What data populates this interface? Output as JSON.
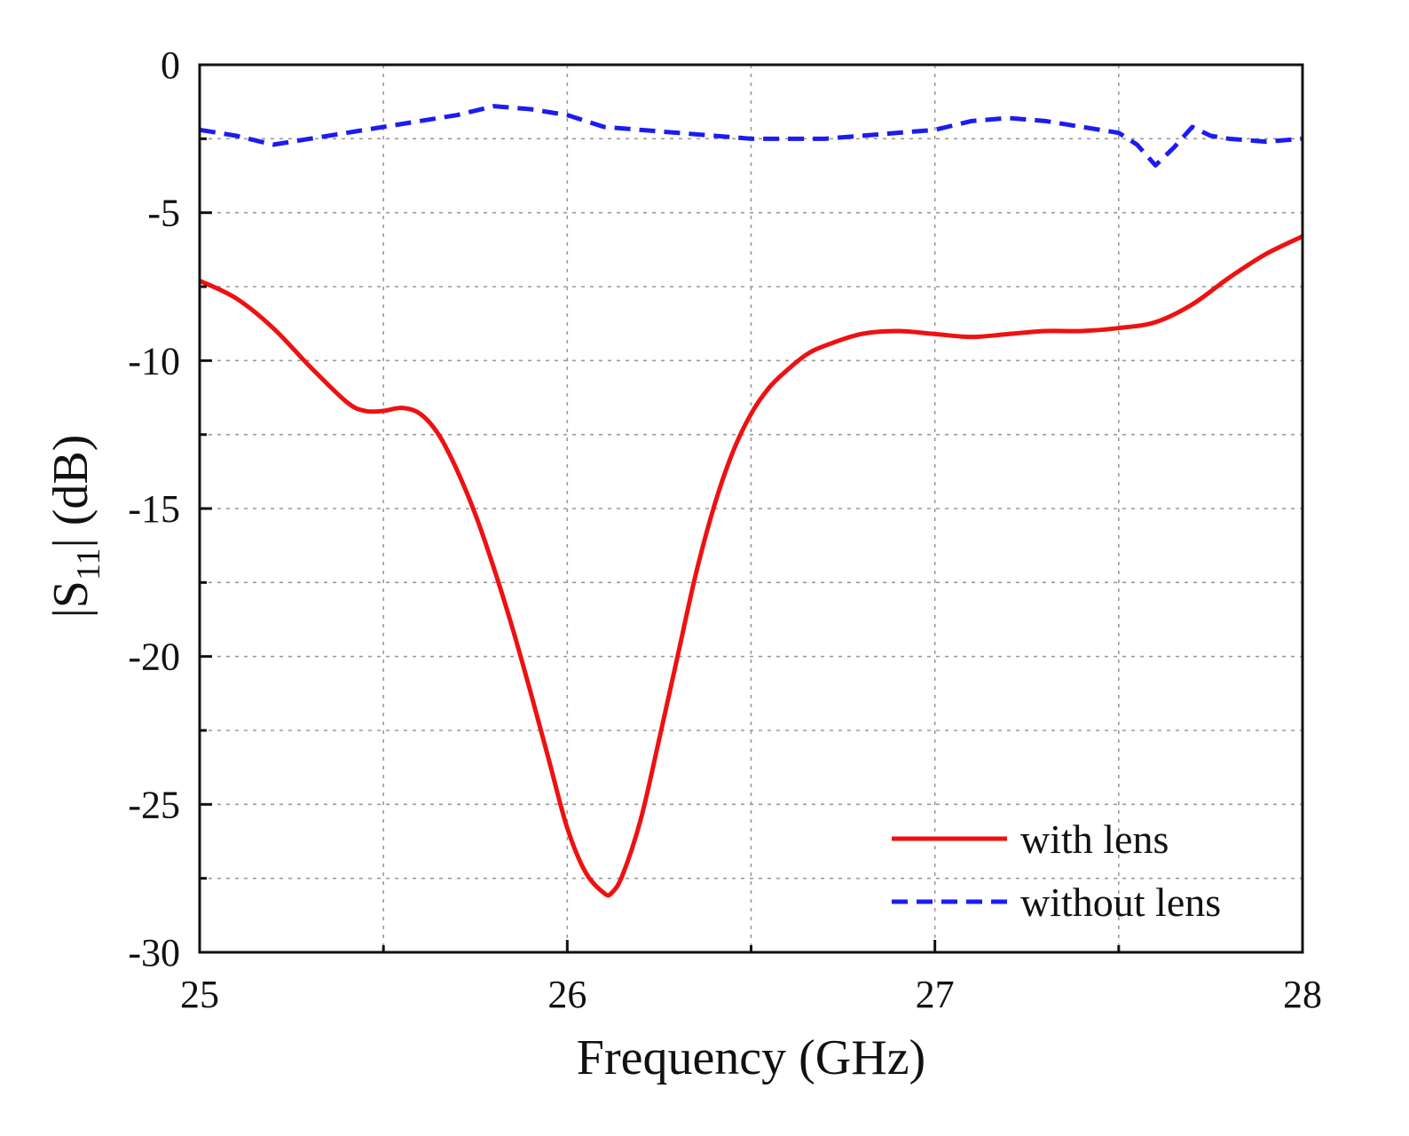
{
  "chart_data": {
    "type": "line",
    "xlabel": "Frequency (GHz)",
    "ylabel_main": "|S",
    "ylabel_sub": "11",
    "ylabel_rest": "| (dB)",
    "xlim": [
      25,
      28
    ],
    "ylim": [
      -30,
      0
    ],
    "xticks": [
      25,
      26,
      27,
      28
    ],
    "xtick_labels": [
      "25",
      "26",
      "27",
      "28"
    ],
    "yticks": [
      0,
      -5,
      -10,
      -15,
      -20,
      -25,
      -30
    ],
    "ytick_labels": [
      "0",
      "-5",
      "-10",
      "-15",
      "-20",
      "-25",
      "-30"
    ],
    "grid": true,
    "legend_position": "bottom-right",
    "series": [
      {
        "name": "with lens",
        "color": "#ee1111",
        "style": "solid",
        "x": [
          25.0,
          25.1,
          25.2,
          25.3,
          25.4,
          25.45,
          25.5,
          25.55,
          25.6,
          25.65,
          25.7,
          25.75,
          25.8,
          25.85,
          25.9,
          25.95,
          26.0,
          26.05,
          26.1,
          26.12,
          26.15,
          26.2,
          26.25,
          26.3,
          26.35,
          26.4,
          26.45,
          26.5,
          26.55,
          26.6,
          26.65,
          26.7,
          26.8,
          26.9,
          27.0,
          27.1,
          27.2,
          27.3,
          27.4,
          27.5,
          27.6,
          27.7,
          27.8,
          27.9,
          28.0
        ],
        "values": [
          -7.3,
          -7.9,
          -8.9,
          -10.2,
          -11.4,
          -11.7,
          -11.7,
          -11.6,
          -11.8,
          -12.5,
          -13.7,
          -15.2,
          -17.0,
          -19.0,
          -21.2,
          -23.5,
          -25.8,
          -27.3,
          -28.0,
          -28.0,
          -27.4,
          -25.5,
          -22.8,
          -20.0,
          -17.2,
          -14.9,
          -13.1,
          -11.8,
          -10.9,
          -10.3,
          -9.8,
          -9.5,
          -9.1,
          -9.0,
          -9.1,
          -9.2,
          -9.1,
          -9.0,
          -9.0,
          -8.9,
          -8.7,
          -8.1,
          -7.2,
          -6.4,
          -5.8
        ]
      },
      {
        "name": "without lens",
        "color": "#1c1cf0",
        "style": "dashed",
        "x": [
          25.0,
          25.1,
          25.2,
          25.3,
          25.4,
          25.5,
          25.6,
          25.7,
          25.8,
          25.9,
          26.0,
          26.1,
          26.2,
          26.3,
          26.4,
          26.5,
          26.6,
          26.7,
          26.8,
          26.9,
          27.0,
          27.1,
          27.2,
          27.3,
          27.4,
          27.5,
          27.55,
          27.6,
          27.65,
          27.7,
          27.75,
          27.8,
          27.9,
          28.0
        ],
        "values": [
          -2.2,
          -2.4,
          -2.7,
          -2.5,
          -2.3,
          -2.1,
          -1.9,
          -1.7,
          -1.4,
          -1.5,
          -1.7,
          -2.1,
          -2.2,
          -2.3,
          -2.4,
          -2.5,
          -2.5,
          -2.5,
          -2.4,
          -2.3,
          -2.2,
          -1.9,
          -1.8,
          -1.9,
          -2.1,
          -2.3,
          -2.7,
          -3.4,
          -2.8,
          -2.1,
          -2.4,
          -2.5,
          -2.6,
          -2.5
        ]
      }
    ]
  }
}
